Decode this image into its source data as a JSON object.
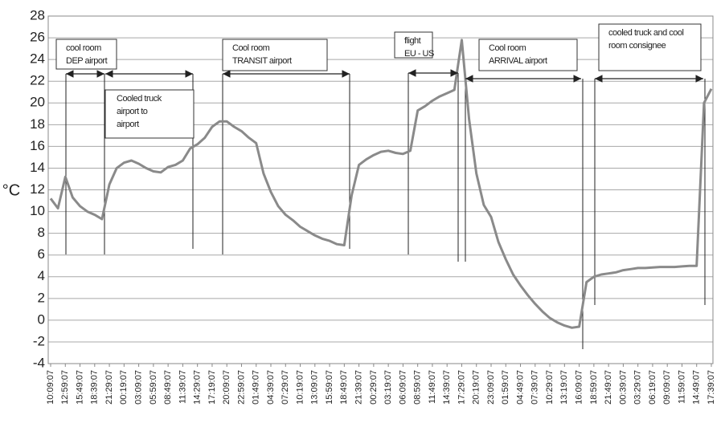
{
  "chart_data": {
    "type": "line",
    "y_label": "°C",
    "ylim": [
      -4,
      28
    ],
    "yticks": [
      -4,
      -2,
      0,
      2,
      4,
      6,
      8,
      10,
      12,
      14,
      16,
      18,
      20,
      22,
      24,
      26,
      28
    ],
    "grid": true,
    "categories": [
      "10:09:07",
      null,
      "12:59:07",
      null,
      "15:49:07",
      null,
      "18:39:07",
      null,
      "21:29:07",
      null,
      "00:19:07",
      null,
      "03:09:07",
      null,
      "05:59:07",
      null,
      "08:49:07",
      null,
      "11:39:07",
      null,
      "14:29:07",
      null,
      "17:19:07",
      null,
      "20:09:07",
      null,
      "22:59:07",
      null,
      "01:49:07",
      null,
      "04:39:07",
      null,
      "07:29:07",
      null,
      "10:19:07",
      null,
      "13:09:07",
      null,
      "15:59:07",
      null,
      "18:49:07",
      null,
      "21:39:07",
      null,
      "00:29:07",
      null,
      "03:19:07",
      null,
      "06:09:07",
      null,
      "08:59:07",
      null,
      "11:49:07",
      null,
      "14:39:07",
      null,
      "17:29:07",
      null,
      "20:19:07",
      null,
      "23:09:07",
      null,
      "01:59:07",
      null,
      "04:49:07",
      null,
      "07:39:07",
      null,
      "10:29:07",
      null,
      "13:19:07",
      null,
      "16:09:07",
      null,
      "18:59:07",
      null,
      "21:49:07",
      null,
      "00:39:07",
      null,
      "03:29:07",
      null,
      "06:19:07",
      null,
      "09:09:07",
      null,
      "11:59:07",
      null,
      "14:49:07",
      null,
      "17:39:07"
    ],
    "series": [
      {
        "color": "#8a8a8a",
        "values": [
          11.2,
          10.3,
          13.2,
          11.3,
          10.5,
          10.0,
          9.7,
          9.3,
          12.5,
          14.0,
          14.5,
          14.7,
          14.4,
          14.0,
          13.7,
          13.6,
          14.1,
          14.3,
          14.7,
          15.8,
          16.2,
          16.8,
          17.8,
          18.3,
          18.3,
          17.8,
          17.4,
          16.8,
          16.3,
          13.5,
          11.8,
          10.5,
          9.7,
          9.2,
          8.6,
          8.2,
          7.8,
          7.5,
          7.3,
          7.0,
          6.9,
          11.5,
          14.3,
          14.8,
          15.2,
          15.5,
          15.6,
          15.4,
          15.3,
          15.6,
          19.3,
          19.7,
          20.2,
          20.6,
          20.9,
          21.2,
          25.8,
          18.5,
          13.5,
          10.6,
          9.5,
          7.2,
          5.6,
          4.2,
          3.2,
          2.3,
          1.5,
          0.8,
          0.2,
          -0.2,
          -0.5,
          -0.7,
          -0.6,
          3.5,
          4.0,
          4.2,
          4.3,
          4.4,
          4.6,
          4.7,
          4.8,
          4.8,
          4.85,
          4.9,
          4.9,
          4.9,
          4.95,
          5.0,
          5.0,
          20.0,
          21.3
        ]
      }
    ],
    "annotations": [
      {
        "text": [
          "cool room",
          "DEP airport"
        ]
      },
      {
        "text": [
          "Cooled truck",
          "airport to",
          "airport"
        ]
      },
      {
        "text": [
          "Cool room",
          "TRANSIT airport"
        ]
      },
      {
        "text": [
          "flight",
          "EU - US"
        ]
      },
      {
        "text": [
          "Cool room",
          "ARRIVAL airport"
        ]
      },
      {
        "text": [
          "cooled truck and cool",
          "room consignee"
        ]
      }
    ]
  }
}
